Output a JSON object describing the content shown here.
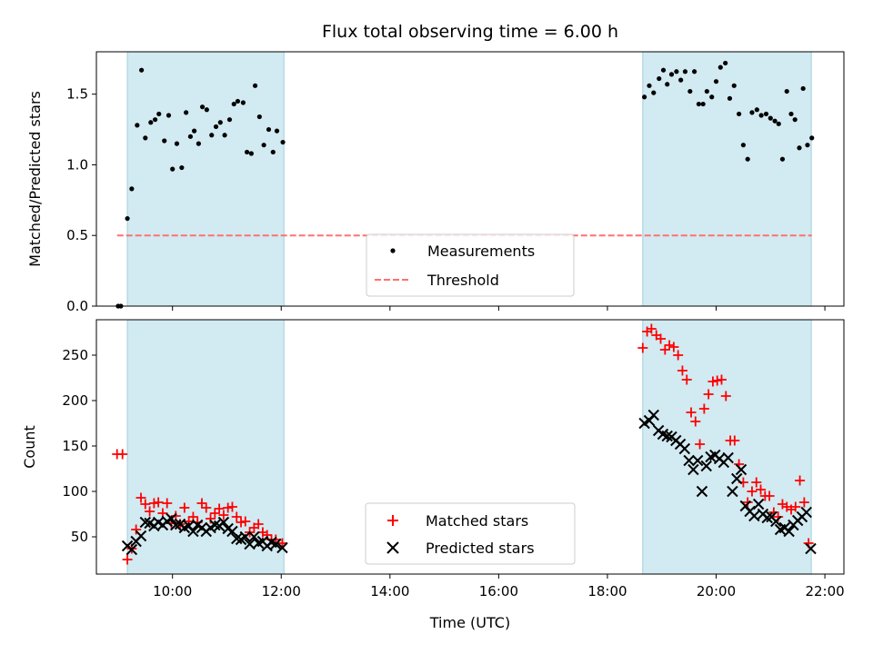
{
  "chart_data": {
    "type": "scatter",
    "title": "Flux total observing time = 6.00 h",
    "xlabel": "Time (UTC)",
    "x_unit": "hours UTC",
    "x_ticks": [
      "10:00",
      "12:00",
      "14:00",
      "16:00",
      "18:00",
      "20:00",
      "22:00"
    ],
    "x_tick_values": [
      10,
      12,
      14,
      16,
      18,
      20,
      22
    ],
    "xlim": [
      8.6,
      22.35
    ],
    "shaded_spans": [
      [
        9.17,
        12.05
      ],
      [
        18.65,
        21.75
      ]
    ],
    "shade_color": "#add8e6",
    "panels": [
      {
        "ylabel": "Matched/Predicted stars",
        "ylim": [
          0,
          1.8
        ],
        "y_ticks": [
          "0.0",
          "0.5",
          "1.0",
          "1.5"
        ],
        "y_tick_values": [
          0,
          0.5,
          1.0,
          1.5
        ],
        "legend": {
          "position": "lower center",
          "entries": [
            "Measurements",
            "Threshold"
          ]
        },
        "series": [
          {
            "name": "Measurements",
            "marker": "dot",
            "color": "#000000",
            "points": [
              [
                9.0,
                0.0
              ],
              [
                9.05,
                0.0
              ],
              [
                9.17,
                0.62
              ],
              [
                9.25,
                0.83
              ],
              [
                9.35,
                1.28
              ],
              [
                9.43,
                1.67
              ],
              [
                9.5,
                1.19
              ],
              [
                9.6,
                1.3
              ],
              [
                9.68,
                1.32
              ],
              [
                9.75,
                1.36
              ],
              [
                9.85,
                1.17
              ],
              [
                9.93,
                1.35
              ],
              [
                10.0,
                0.97
              ],
              [
                10.08,
                1.15
              ],
              [
                10.17,
                0.98
              ],
              [
                10.25,
                1.37
              ],
              [
                10.33,
                1.2
              ],
              [
                10.4,
                1.24
              ],
              [
                10.48,
                1.15
              ],
              [
                10.55,
                1.41
              ],
              [
                10.63,
                1.39
              ],
              [
                10.72,
                1.21
              ],
              [
                10.8,
                1.27
              ],
              [
                10.88,
                1.3
              ],
              [
                10.96,
                1.21
              ],
              [
                11.05,
                1.32
              ],
              [
                11.13,
                1.43
              ],
              [
                11.2,
                1.45
              ],
              [
                11.3,
                1.44
              ],
              [
                11.37,
                1.09
              ],
              [
                11.45,
                1.08
              ],
              [
                11.52,
                1.56
              ],
              [
                11.6,
                1.34
              ],
              [
                11.68,
                1.14
              ],
              [
                11.77,
                1.25
              ],
              [
                11.85,
                1.09
              ],
              [
                11.92,
                1.24
              ],
              [
                12.03,
                1.16
              ],
              [
                18.68,
                1.48
              ],
              [
                18.77,
                1.56
              ],
              [
                18.85,
                1.51
              ],
              [
                18.95,
                1.61
              ],
              [
                19.03,
                1.67
              ],
              [
                19.1,
                1.57
              ],
              [
                19.18,
                1.64
              ],
              [
                19.27,
                1.66
              ],
              [
                19.35,
                1.6
              ],
              [
                19.43,
                1.66
              ],
              [
                19.52,
                1.52
              ],
              [
                19.6,
                1.66
              ],
              [
                19.68,
                1.43
              ],
              [
                19.76,
                1.43
              ],
              [
                19.83,
                1.52
              ],
              [
                19.92,
                1.48
              ],
              [
                20.0,
                1.59
              ],
              [
                20.08,
                1.69
              ],
              [
                20.17,
                1.72
              ],
              [
                20.25,
                1.47
              ],
              [
                20.33,
                1.56
              ],
              [
                20.42,
                1.36
              ],
              [
                20.5,
                1.14
              ],
              [
                20.58,
                1.04
              ],
              [
                20.66,
                1.37
              ],
              [
                20.75,
                1.39
              ],
              [
                20.83,
                1.35
              ],
              [
                20.92,
                1.36
              ],
              [
                21.0,
                1.33
              ],
              [
                21.08,
                1.31
              ],
              [
                21.15,
                1.29
              ],
              [
                21.22,
                1.04
              ],
              [
                21.3,
                1.52
              ],
              [
                21.38,
                1.36
              ],
              [
                21.45,
                1.32
              ],
              [
                21.53,
                1.12
              ],
              [
                21.6,
                1.54
              ],
              [
                21.68,
                1.14
              ],
              [
                21.76,
                1.19
              ]
            ]
          },
          {
            "name": "Threshold",
            "style": "dashed",
            "color": "#ff7070",
            "x_range": [
              8.98,
              21.76
            ],
            "y": 0.5
          }
        ]
      },
      {
        "ylabel": "Count",
        "ylim": [
          9,
          289
        ],
        "y_ticks": [
          "50",
          "100",
          "150",
          "200",
          "250"
        ],
        "y_tick_values": [
          50,
          100,
          150,
          200,
          250
        ],
        "legend": {
          "position": "lower center",
          "entries": [
            "Matched stars",
            "Predicted stars"
          ]
        },
        "series": [
          {
            "name": "Matched stars",
            "marker": "plus",
            "color": "#ff0000",
            "points": [
              [
                8.98,
                141
              ],
              [
                9.08,
                141
              ],
              [
                9.17,
                25
              ],
              [
                9.25,
                37
              ],
              [
                9.33,
                58
              ],
              [
                9.42,
                93
              ],
              [
                9.5,
                86
              ],
              [
                9.58,
                78
              ],
              [
                9.66,
                87
              ],
              [
                9.74,
                88
              ],
              [
                9.82,
                76
              ],
              [
                9.9,
                87
              ],
              [
                9.98,
                65
              ],
              [
                10.06,
                73
              ],
              [
                10.14,
                64
              ],
              [
                10.22,
                82
              ],
              [
                10.3,
                67
              ],
              [
                10.38,
                72
              ],
              [
                10.46,
                66
              ],
              [
                10.54,
                87
              ],
              [
                10.62,
                82
              ],
              [
                10.7,
                70
              ],
              [
                10.78,
                76
              ],
              [
                10.86,
                81
              ],
              [
                10.94,
                74
              ],
              [
                11.02,
                82
              ],
              [
                11.1,
                83
              ],
              [
                11.18,
                72
              ],
              [
                11.26,
                66
              ],
              [
                11.34,
                67
              ],
              [
                11.42,
                55
              ],
              [
                11.5,
                60
              ],
              [
                11.58,
                64
              ],
              [
                11.66,
                55
              ],
              [
                11.74,
                52
              ],
              [
                11.82,
                47
              ],
              [
                11.9,
                47
              ],
              [
                12.02,
                43
              ],
              [
                18.65,
                258
              ],
              [
                18.73,
                276
              ],
              [
                18.81,
                279
              ],
              [
                18.9,
                272
              ],
              [
                18.98,
                268
              ],
              [
                19.06,
                256
              ],
              [
                19.14,
                261
              ],
              [
                19.22,
                259
              ],
              [
                19.3,
                250
              ],
              [
                19.38,
                233
              ],
              [
                19.46,
                223
              ],
              [
                19.54,
                187
              ],
              [
                19.62,
                177
              ],
              [
                19.7,
                152
              ],
              [
                19.78,
                191
              ],
              [
                19.86,
                207
              ],
              [
                19.94,
                221
              ],
              [
                20.02,
                222
              ],
              [
                20.1,
                223
              ],
              [
                20.18,
                205
              ],
              [
                20.26,
                156
              ],
              [
                20.34,
                156
              ],
              [
                20.42,
                130
              ],
              [
                20.5,
                110
              ],
              [
                20.58,
                88
              ],
              [
                20.66,
                100
              ],
              [
                20.74,
                110
              ],
              [
                20.82,
                102
              ],
              [
                20.9,
                95
              ],
              [
                20.98,
                95
              ],
              [
                21.06,
                77
              ],
              [
                21.14,
                72
              ],
              [
                21.22,
                86
              ],
              [
                21.3,
                83
              ],
              [
                21.38,
                80
              ],
              [
                21.46,
                83
              ],
              [
                21.54,
                112
              ],
              [
                21.62,
                88
              ],
              [
                21.7,
                43
              ]
            ]
          },
          {
            "name": "Predicted stars",
            "marker": "x",
            "color": "#000000",
            "points": [
              [
                9.17,
                40
              ],
              [
                9.25,
                36
              ],
              [
                9.33,
                45
              ],
              [
                9.42,
                51
              ],
              [
                9.5,
                66
              ],
              [
                9.58,
                65
              ],
              [
                9.66,
                62
              ],
              [
                9.74,
                66
              ],
              [
                9.82,
                63
              ],
              [
                9.9,
                67
              ],
              [
                9.98,
                70
              ],
              [
                10.06,
                63
              ],
              [
                10.14,
                64
              ],
              [
                10.22,
                60
              ],
              [
                10.3,
                62
              ],
              [
                10.38,
                56
              ],
              [
                10.46,
                63
              ],
              [
                10.54,
                60
              ],
              [
                10.62,
                56
              ],
              [
                10.7,
                60
              ],
              [
                10.78,
                63
              ],
              [
                10.86,
                62
              ],
              [
                10.94,
                66
              ],
              [
                11.02,
                59
              ],
              [
                11.1,
                56
              ],
              [
                11.18,
                48
              ],
              [
                11.26,
                47
              ],
              [
                11.34,
                50
              ],
              [
                11.42,
                42
              ],
              [
                11.5,
                50
              ],
              [
                11.58,
                43
              ],
              [
                11.66,
                45
              ],
              [
                11.74,
                40
              ],
              [
                11.82,
                44
              ],
              [
                11.9,
                42
              ],
              [
                12.02,
                38
              ],
              [
                18.68,
                175
              ],
              [
                18.77,
                178
              ],
              [
                18.85,
                184
              ],
              [
                18.94,
                167
              ],
              [
                19.02,
                163
              ],
              [
                19.1,
                161
              ],
              [
                19.18,
                160
              ],
              [
                19.26,
                156
              ],
              [
                19.34,
                152
              ],
              [
                19.42,
                147
              ],
              [
                19.5,
                134
              ],
              [
                19.58,
                124
              ],
              [
                19.66,
                134
              ],
              [
                19.74,
                100
              ],
              [
                19.82,
                128
              ],
              [
                19.9,
                138
              ],
              [
                19.98,
                140
              ],
              [
                20.06,
                136
              ],
              [
                20.14,
                132
              ],
              [
                20.22,
                137
              ],
              [
                20.3,
                100
              ],
              [
                20.38,
                114
              ],
              [
                20.46,
                124
              ],
              [
                20.54,
                84
              ],
              [
                20.62,
                78
              ],
              [
                20.7,
                73
              ],
              [
                20.78,
                86
              ],
              [
                20.86,
                75
              ],
              [
                20.94,
                71
              ],
              [
                21.02,
                72
              ],
              [
                21.1,
                67
              ],
              [
                21.18,
                58
              ],
              [
                21.26,
                60
              ],
              [
                21.34,
                56
              ],
              [
                21.42,
                63
              ],
              [
                21.5,
                68
              ],
              [
                21.58,
                72
              ],
              [
                21.66,
                77
              ],
              [
                21.74,
                37
              ]
            ]
          }
        ]
      }
    ]
  }
}
